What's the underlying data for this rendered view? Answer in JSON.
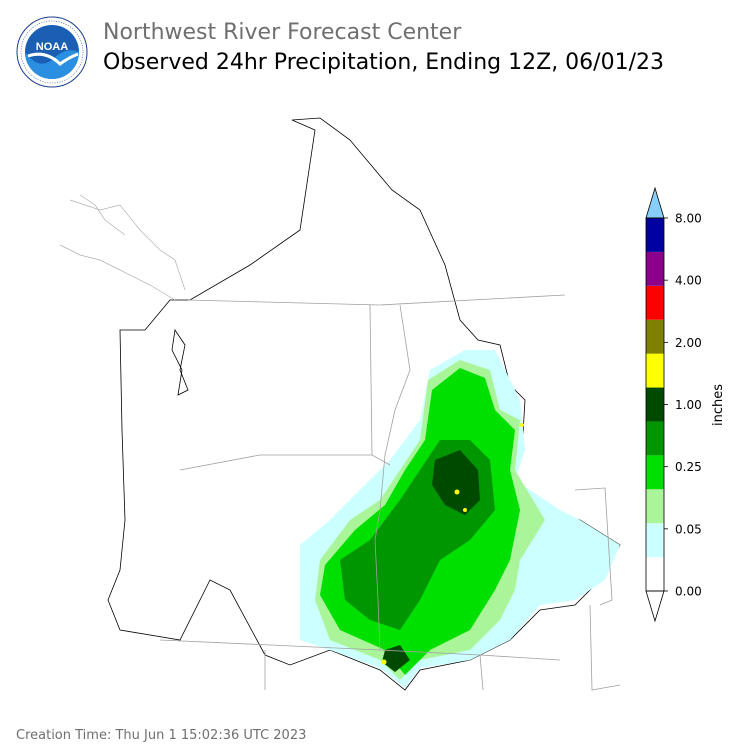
{
  "header": {
    "agency": "Northwest River Forecast Center",
    "title": "Observed 24hr Precipitation, Ending 12Z, 06/01/23",
    "logo_icon": "noaa-logo-icon"
  },
  "legend": {
    "unit_label": "inches",
    "ticks": [
      "0.00",
      "0.05",
      "0.25",
      "1.00",
      "2.00",
      "4.00",
      "8.00"
    ],
    "colors": [
      "#ffffff",
      "#ccffff",
      "#aaf59a",
      "#00e000",
      "#009600",
      "#004a00",
      "#ffff00",
      "#7f7f00",
      "#ff0000",
      "#8b008b",
      "#0000a0",
      "#0050ff",
      "#87cefa"
    ]
  },
  "footer": {
    "creation_time": "Creation Time: Thu Jun 1 15:02:36 UTC 2023"
  }
}
